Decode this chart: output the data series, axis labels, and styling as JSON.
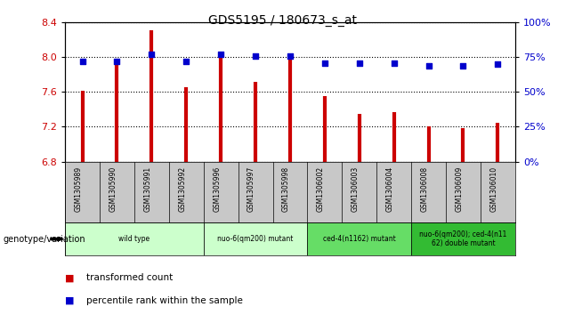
{
  "title": "GDS5195 / 180673_s_at",
  "samples": [
    "GSM1305989",
    "GSM1305990",
    "GSM1305991",
    "GSM1305992",
    "GSM1305996",
    "GSM1305997",
    "GSM1305998",
    "GSM1306002",
    "GSM1306003",
    "GSM1306004",
    "GSM1306008",
    "GSM1306009",
    "GSM1306010"
  ],
  "transformed_count": [
    7.61,
    7.97,
    8.31,
    7.66,
    8.0,
    7.72,
    7.97,
    7.55,
    7.35,
    7.37,
    7.2,
    7.18,
    7.25
  ],
  "percentile_rank": [
    72,
    72,
    77,
    72,
    77,
    76,
    76,
    71,
    71,
    71,
    69,
    69,
    70
  ],
  "ylim_left": [
    6.8,
    8.4
  ],
  "ylim_right": [
    0,
    100
  ],
  "yticks_left": [
    6.8,
    7.2,
    7.6,
    8.0,
    8.4
  ],
  "yticks_right": [
    0,
    25,
    50,
    75,
    100
  ],
  "groups": [
    {
      "label": "wild type",
      "start": 0,
      "end": 3,
      "color": "#ccffcc"
    },
    {
      "label": "nuo-6(qm200) mutant",
      "start": 4,
      "end": 6,
      "color": "#ccffcc"
    },
    {
      "label": "ced-4(n1162) mutant",
      "start": 7,
      "end": 9,
      "color": "#66dd66"
    },
    {
      "label": "nuo-6(qm200); ced-4(n11\n62) double mutant",
      "start": 10,
      "end": 12,
      "color": "#33bb33"
    }
  ],
  "bar_color": "#cc0000",
  "dot_color": "#0000cc",
  "label_bg": "#c8c8c8",
  "plot_bg": "#ffffff",
  "fig_bg": "#ffffff"
}
